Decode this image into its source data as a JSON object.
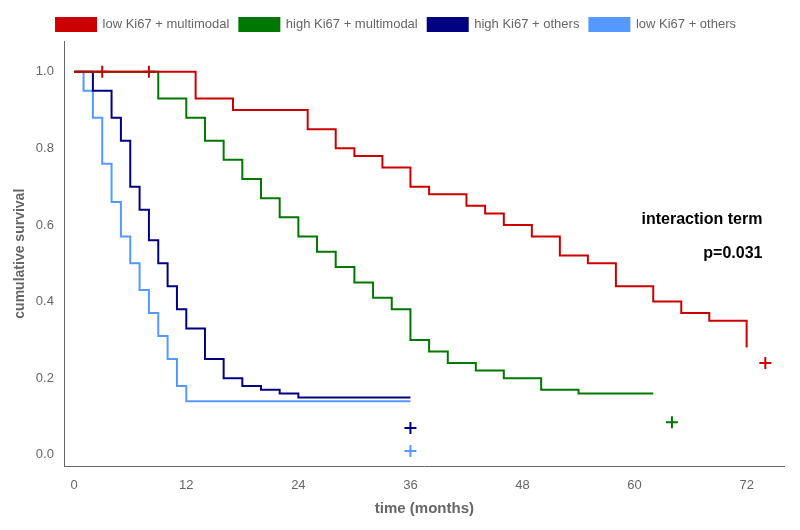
{
  "chart_data": {
    "type": "step",
    "xlabel": "time (months)",
    "ylabel": "cumulative survival",
    "xlim": [
      -1,
      76
    ],
    "ylim": [
      -0.03,
      1.08
    ],
    "xticks": [
      0,
      12,
      24,
      36,
      48,
      60,
      72
    ],
    "yticks": [
      {
        "value": 0.0,
        "label": "0.0"
      },
      {
        "value": 0.2,
        "label": "0.2"
      },
      {
        "value": 0.4,
        "label": "0.4"
      },
      {
        "value": 0.6,
        "label": "0.6"
      },
      {
        "value": 0.8,
        "label": "0.8"
      },
      {
        "value": 1.0,
        "label": "1.0"
      }
    ],
    "grid": false,
    "legend": "top",
    "annotations": [
      "interaction term",
      "p=0.031"
    ],
    "series": [
      {
        "name": "low Ki67 + multimodal",
        "color": "#cc0000",
        "x": [
          0,
          5,
          11,
          13,
          17,
          21,
          25,
          28,
          30,
          33,
          36,
          38,
          42,
          44,
          46,
          49,
          52,
          55,
          58,
          62,
          65,
          68,
          72
        ],
        "values": [
          1.0,
          1.0,
          1.0,
          0.93,
          0.9,
          0.9,
          0.85,
          0.8,
          0.78,
          0.75,
          0.7,
          0.68,
          0.65,
          0.63,
          0.6,
          0.57,
          0.52,
          0.5,
          0.44,
          0.4,
          0.37,
          0.35,
          0.28
        ],
        "censor_x": [
          3,
          8
        ],
        "censor_values": [
          1.0,
          1.0
        ],
        "end_x": 74,
        "end_value": 0.24
      },
      {
        "name": "high Ki67 + multimodal",
        "color": "#007700",
        "x": [
          0,
          6,
          9,
          12,
          14,
          16,
          18,
          20,
          22,
          24,
          26,
          28,
          30,
          32,
          34,
          36,
          38,
          40,
          43,
          46,
          50,
          54,
          58,
          62
        ],
        "values": [
          1.0,
          1.0,
          0.93,
          0.88,
          0.82,
          0.77,
          0.72,
          0.67,
          0.62,
          0.57,
          0.53,
          0.49,
          0.45,
          0.41,
          0.38,
          0.3,
          0.27,
          0.24,
          0.22,
          0.2,
          0.17,
          0.16,
          0.16,
          0.16
        ],
        "censor_x": [],
        "censor_values": [],
        "end_x": 64,
        "end_value": 0.085
      },
      {
        "name": "high Ki67 + others",
        "color": "#000080",
        "x": [
          0,
          2,
          4,
          5,
          6,
          7,
          8,
          9,
          10,
          11,
          12,
          14,
          16,
          18,
          20,
          22,
          24,
          36
        ],
        "values": [
          1.0,
          0.95,
          0.88,
          0.82,
          0.7,
          0.64,
          0.56,
          0.5,
          0.44,
          0.38,
          0.33,
          0.25,
          0.2,
          0.18,
          0.17,
          0.16,
          0.15,
          0.15
        ],
        "censor_x": [],
        "censor_values": [],
        "end_x": 36,
        "end_value": 0.07
      },
      {
        "name": "low Ki67 + others",
        "color": "#5599ff",
        "x": [
          0,
          1,
          2,
          3,
          4,
          5,
          6,
          7,
          8,
          9,
          10,
          11,
          12,
          36
        ],
        "values": [
          1.0,
          0.95,
          0.88,
          0.76,
          0.66,
          0.57,
          0.5,
          0.43,
          0.37,
          0.31,
          0.25,
          0.18,
          0.14,
          0.14
        ],
        "censor_x": [],
        "censor_values": [],
        "end_x": 36,
        "end_value": 0.01
      }
    ]
  }
}
